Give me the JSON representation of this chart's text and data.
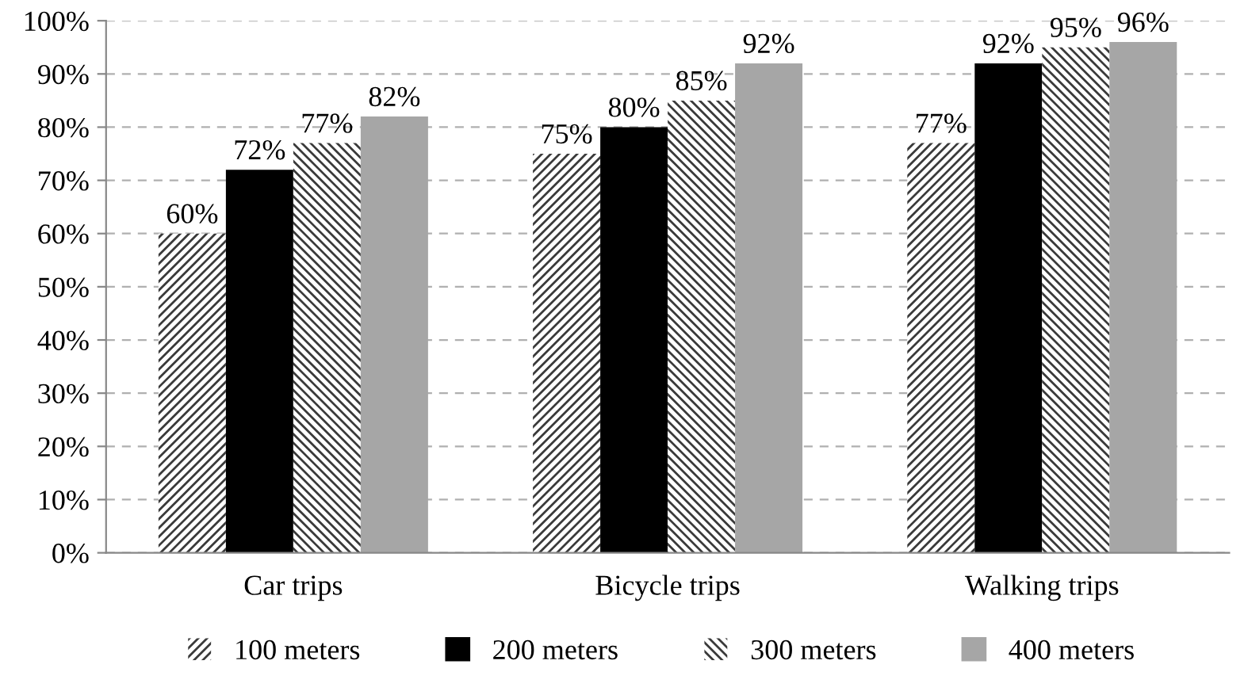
{
  "chart_data": {
    "type": "bar",
    "categories": [
      "Car trips",
      "Bicycle trips",
      "Walking trips"
    ],
    "series": [
      {
        "name": "100 meters",
        "color": "#3a3a3a",
        "values": [
          60,
          75,
          77
        ]
      },
      {
        "name": "200 meters",
        "color": "#000000",
        "values": [
          72,
          80,
          92
        ]
      },
      {
        "name": "300 meters",
        "color": "#3a3a3a",
        "values": [
          77,
          85,
          95
        ]
      },
      {
        "name": "400 meters",
        "color": "#a6a6a6",
        "values": [
          82,
          92,
          96
        ]
      }
    ],
    "value_labels": [
      [
        "60%",
        "75%",
        "77%"
      ],
      [
        "72%",
        "80%",
        "92%"
      ],
      [
        "77%",
        "85%",
        "95%"
      ],
      [
        "82%",
        "92%",
        "96%"
      ]
    ],
    "ylim": [
      0,
      100
    ],
    "yticks": [
      {
        "value": 0,
        "label": "0%"
      },
      {
        "value": 10,
        "label": "10%"
      },
      {
        "value": 20,
        "label": "20%"
      },
      {
        "value": 30,
        "label": "30%"
      },
      {
        "value": 40,
        "label": "40%"
      },
      {
        "value": 50,
        "label": "50%"
      },
      {
        "value": 60,
        "label": "60%"
      },
      {
        "value": 70,
        "label": "70%"
      },
      {
        "value": 80,
        "label": "80%"
      },
      {
        "value": 90,
        "label": "90%"
      },
      {
        "value": 100,
        "label": "100%"
      }
    ],
    "grid": "y",
    "legend": "bottom"
  }
}
